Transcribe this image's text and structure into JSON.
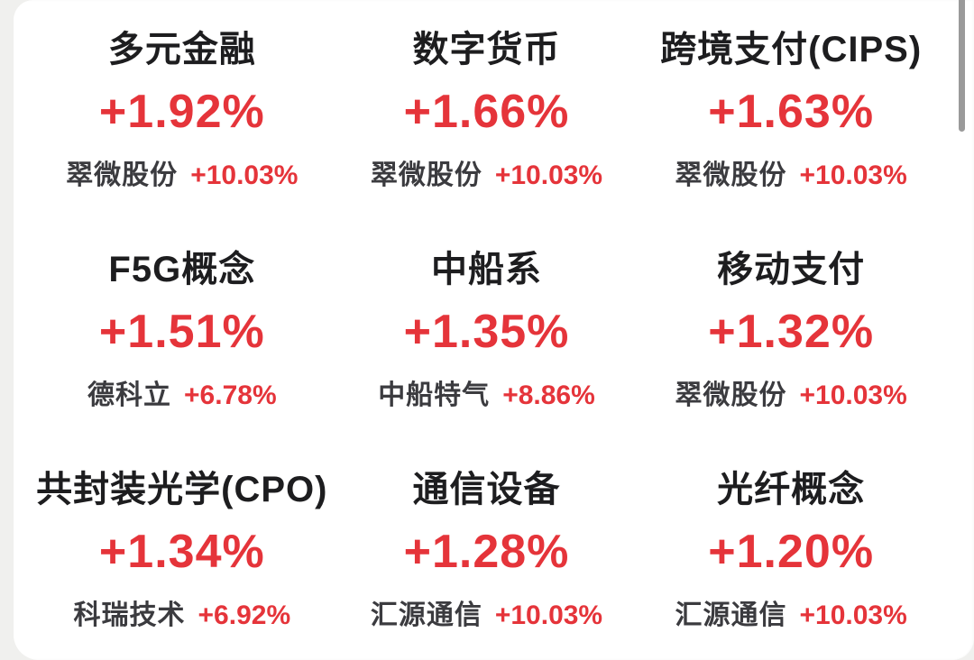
{
  "page": {
    "background_color": "#f0f0ee",
    "card_background_color": "#ffffff"
  },
  "colors": {
    "sector_name_text": "#1d1d1f",
    "change_positive_red": "#e5343a",
    "stock_name_text": "#3b3b3f",
    "scrollbar_gray": "#9a9a9a"
  },
  "sectors": [
    {
      "name": "多元金融",
      "change": "+1.92%",
      "stock_name": "翠微股份",
      "stock_change": "+10.03%"
    },
    {
      "name": "数字货币",
      "change": "+1.66%",
      "stock_name": "翠微股份",
      "stock_change": "+10.03%"
    },
    {
      "name": "跨境支付(CIPS)",
      "change": "+1.63%",
      "stock_name": "翠微股份",
      "stock_change": "+10.03%"
    },
    {
      "name": "F5G概念",
      "change": "+1.51%",
      "stock_name": "德科立",
      "stock_change": "+6.78%"
    },
    {
      "name": "中船系",
      "change": "+1.35%",
      "stock_name": "中船特气",
      "stock_change": "+8.86%"
    },
    {
      "name": "移动支付",
      "change": "+1.32%",
      "stock_name": "翠微股份",
      "stock_change": "+10.03%"
    },
    {
      "name": "共封装光学(CPO)",
      "change": "+1.34%",
      "stock_name": "科瑞技术",
      "stock_change": "+6.92%"
    },
    {
      "name": "通信设备",
      "change": "+1.28%",
      "stock_name": "汇源通信",
      "stock_change": "+10.03%"
    },
    {
      "name": "光纤概念",
      "change": "+1.20%",
      "stock_name": "汇源通信",
      "stock_change": "+10.03%"
    }
  ]
}
